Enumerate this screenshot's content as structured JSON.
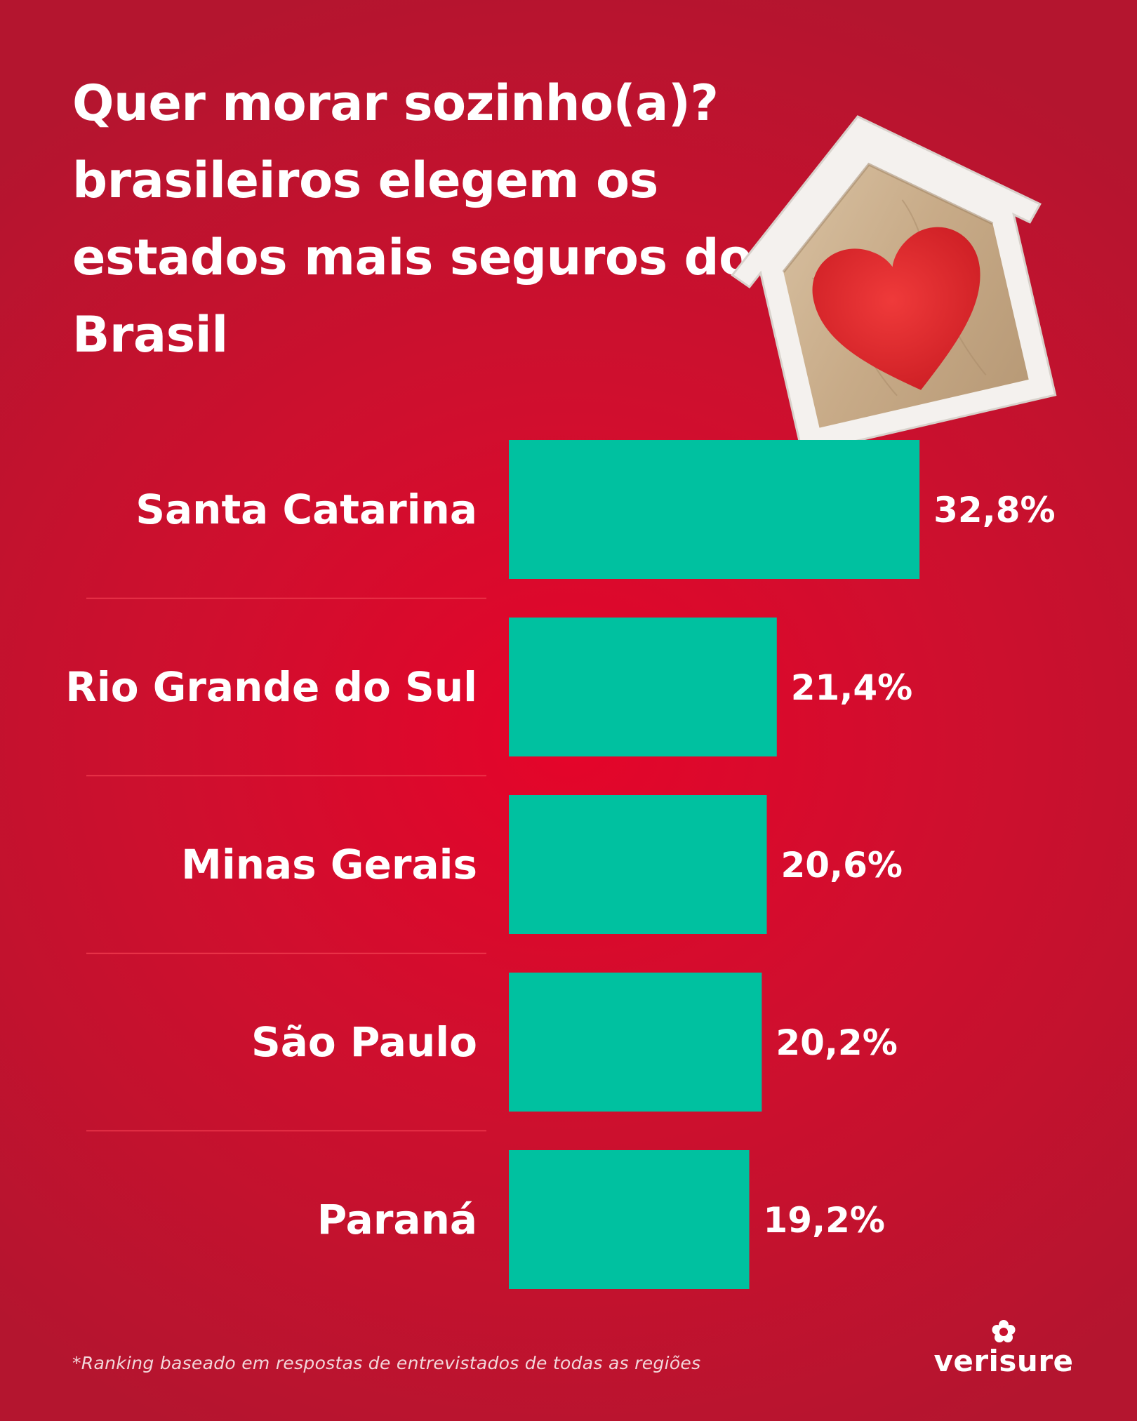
{
  "title": "Quer morar sozinho(a)? brasileiros elegem os estados mais seguros do Brasil",
  "footnote": "*Ranking baseado em respostas de entrevistados de todas as regiões",
  "brand": "verisure",
  "colors": {
    "background": "#c8102e",
    "bar": "#00c1a0",
    "text": "#ffffff",
    "divider": "#ef3b4e"
  },
  "chart_data": {
    "type": "bar",
    "orientation": "horizontal",
    "categories": [
      "Santa Catarina",
      "Rio Grande do Sul",
      "Minas Gerais",
      "São Paulo",
      "Paraná"
    ],
    "values": [
      32.8,
      21.4,
      20.6,
      20.2,
      19.2
    ],
    "value_labels": [
      "32,8%",
      "21,4%",
      "20,6%",
      "20,2%",
      "19,2%"
    ],
    "unit": "%",
    "xlabel": "",
    "ylabel": "",
    "grid": false,
    "legend": "none"
  }
}
